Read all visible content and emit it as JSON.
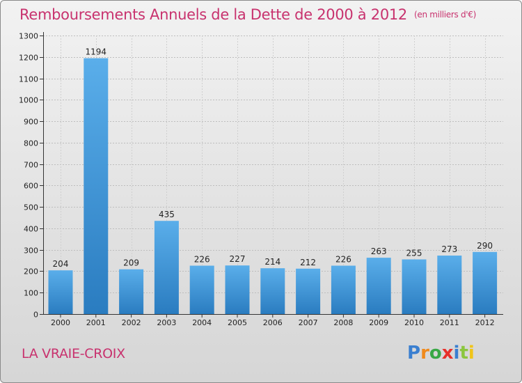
{
  "header": {
    "title": "Remboursements Annuels de la Dette de 2000 à 2012",
    "unit": "(en milliers d'€)"
  },
  "footer": {
    "commune": "LA VRAIE-CROIX",
    "logo_text": "Proxiti"
  },
  "chart_data": {
    "type": "bar",
    "title": "Remboursements Annuels de la Dette de 2000 à 2012",
    "subtitle": "(en milliers d'€)",
    "xlabel": "",
    "ylabel": "",
    "categories": [
      "2000",
      "2001",
      "2002",
      "2003",
      "2004",
      "2005",
      "2006",
      "2007",
      "2008",
      "2009",
      "2010",
      "2011",
      "2012"
    ],
    "values": [
      204,
      1194,
      209,
      435,
      226,
      227,
      214,
      212,
      226,
      263,
      255,
      273,
      290
    ],
    "ylim": [
      0,
      1300
    ],
    "yticks": [
      0,
      100,
      200,
      300,
      400,
      500,
      600,
      700,
      800,
      900,
      1000,
      1100,
      1200,
      1300
    ],
    "grid": true,
    "bar_color": "#4f9fdf"
  }
}
